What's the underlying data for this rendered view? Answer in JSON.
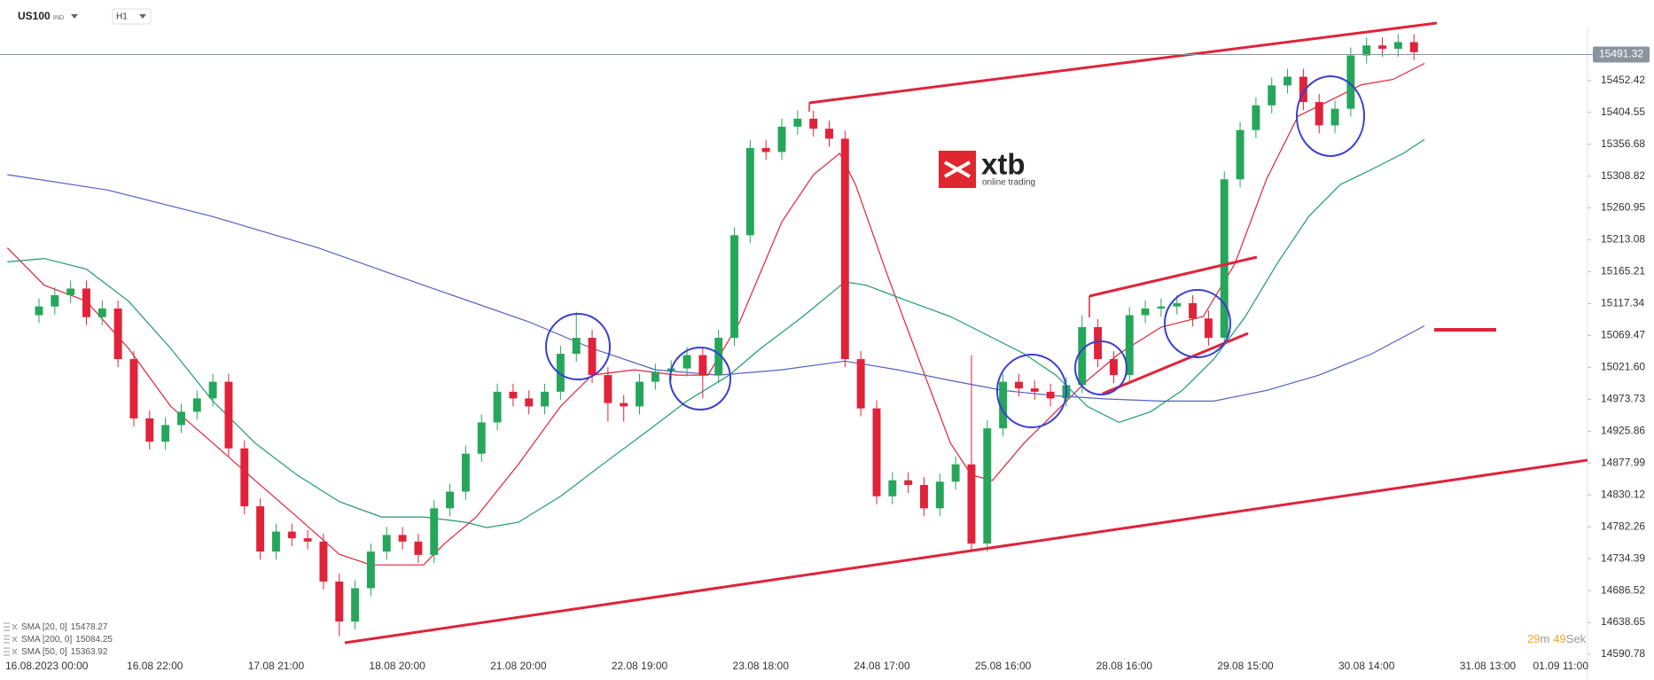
{
  "header": {
    "symbol": "US100",
    "market": "IND",
    "timeframe": "H1"
  },
  "logo": {
    "brand": "xtb",
    "tagline": "online trading"
  },
  "timer": {
    "minutes": "29",
    "minutes_unit": "m",
    "seconds": "49",
    "seconds_unit": "Sek"
  },
  "chart_data": {
    "type": "candlestick",
    "up_color": "#26a65b",
    "down_color": "#e0233a",
    "xlim": [
      -7.4,
      300
    ],
    "ylim": [
      14590.78,
      15525.3
    ],
    "xticks": [
      {
        "value": 0,
        "label": "16.08.2023 00:00"
      },
      {
        "value": 22,
        "label": "16.08 22:00"
      },
      {
        "value": 45,
        "label": "17.08 21:00"
      },
      {
        "value": 68,
        "label": "18.08 20:00"
      },
      {
        "value": 91,
        "label": "21.08 20:00"
      },
      {
        "value": 114,
        "label": "22.08 19:00"
      },
      {
        "value": 137,
        "label": "23.08 18:00"
      },
      {
        "value": 160,
        "label": "24.08 17:00"
      },
      {
        "value": 183,
        "label": "25.08 16:00"
      },
      {
        "value": 206,
        "label": "28.08 16:00"
      },
      {
        "value": 229,
        "label": "29.08 15:00"
      },
      {
        "value": 252,
        "label": "30.08 14:00"
      },
      {
        "value": 275,
        "label": "31.08 13:00"
      },
      {
        "value": 298,
        "label": "01.09 11:00"
      }
    ],
    "yticks": [
      14590.78,
      14638.65,
      14686.52,
      14734.39,
      14782.26,
      14830.12,
      14877.99,
      14925.86,
      14973.73,
      {
        "value": 15021.6,
        "label": "15021.60"
      },
      15069.47,
      15117.34,
      15165.21,
      15213.08,
      15260.95,
      15308.82,
      15356.68,
      15404.55,
      15452.42
    ],
    "current_price": 15491.32,
    "x": [
      0,
      3,
      6,
      9,
      12,
      15,
      18,
      21,
      24,
      27,
      30,
      33,
      36,
      39,
      42,
      45,
      48,
      51,
      54,
      57,
      60,
      63,
      66,
      69,
      72,
      75,
      78,
      81,
      84,
      87,
      90,
      93,
      96,
      99,
      102,
      105,
      108,
      111,
      114,
      117,
      120,
      123,
      126,
      129,
      132,
      135,
      138,
      141,
      144,
      147,
      150,
      153,
      156,
      159,
      162,
      165,
      168,
      171,
      174,
      177,
      180,
      183,
      186,
      189,
      192,
      195,
      198,
      201,
      204,
      207,
      210,
      213,
      216,
      219,
      222,
      225,
      228,
      231,
      234,
      237,
      240,
      243,
      246,
      249,
      252,
      255,
      258,
      261
    ],
    "open": [
      15100,
      15113,
      15130,
      15140,
      15097,
      15110,
      15034,
      14945,
      14910,
      14935,
      14955,
      14975,
      15000,
      14900,
      14813,
      14745,
      14775,
      14765,
      14760,
      14700,
      14640,
      14690,
      14745,
      14770,
      14760,
      14740,
      14810,
      14835,
      14892,
      14939,
      14985,
      14975,
      14963,
      14985,
      15042,
      15066,
      15010,
      14968,
      14963,
      15000,
      15015,
      15020,
      15040,
      15010,
      15066,
      15220,
      15351,
      15345,
      15383,
      15395,
      15380,
      15365,
      15034,
      14960,
      14828,
      14852,
      14845,
      14810,
      14850,
      14876,
      14757,
      14930,
      15000,
      14990,
      14985,
      14975,
      14995,
      15082,
      15034,
      15010,
      15100,
      15110,
      15113,
      15118,
      15095,
      15066,
      15304,
      15378,
      15415,
      15445,
      15458,
      15420,
      15385,
      15410,
      15490,
      15505,
      15500,
      15510
    ],
    "high": [
      15125,
      15142,
      15152,
      15152,
      15122,
      15122,
      15046,
      14957,
      14947,
      14967,
      14987,
      15012,
      15012,
      14912,
      14825,
      14787,
      14787,
      14777,
      14772,
      14712,
      14702,
      14757,
      14782,
      14782,
      14772,
      14822,
      14847,
      14904,
      14951,
      14997,
      14997,
      14987,
      14997,
      15054,
      15105,
      15078,
      15022,
      14980,
      15012,
      15027,
      15032,
      15052,
      15052,
      15078,
      15232,
      15363,
      15363,
      15395,
      15407,
      15407,
      15392,
      15377,
      15046,
      14972,
      14864,
      14864,
      14857,
      14862,
      14888,
      15040,
      14942,
      15012,
      15012,
      15002,
      14997,
      15007,
      15100,
      15094,
      15046,
      15112,
      15122,
      15125,
      15130,
      15130,
      15107,
      15316,
      15390,
      15427,
      15457,
      15470,
      15470,
      15432,
      15422,
      15502,
      15517,
      15517,
      15522,
      15522
    ],
    "low": [
      15088,
      15101,
      15118,
      15085,
      15085,
      15022,
      14933,
      14898,
      14898,
      14923,
      14943,
      14963,
      14888,
      14801,
      14733,
      14733,
      14753,
      14748,
      14688,
      14618,
      14628,
      14678,
      14733,
      14748,
      14728,
      14728,
      14798,
      14823,
      14880,
      14927,
      14963,
      14951,
      14951,
      14973,
      15030,
      14998,
      14940,
      14940,
      14951,
      14988,
      15003,
      15008,
      14975,
      14998,
      15054,
      15208,
      15333,
      15333,
      15371,
      15368,
      15353,
      15022,
      14948,
      14816,
      14816,
      14833,
      14798,
      14798,
      14838,
      14745,
      14745,
      14918,
      14978,
      14973,
      14963,
      14963,
      14983,
      15022,
      14998,
      14998,
      15088,
      15098,
      15101,
      15083,
      15054,
      15054,
      15292,
      15366,
      15403,
      15433,
      15408,
      15373,
      15373,
      15398,
      15478,
      15488,
      15488,
      15483
    ],
    "close": [
      15113,
      15130,
      15140,
      15097,
      15110,
      15034,
      14945,
      14910,
      14935,
      14955,
      14975,
      15000,
      14900,
      14813,
      14745,
      14775,
      14765,
      14760,
      14700,
      14640,
      14690,
      14745,
      14770,
      14760,
      14740,
      14810,
      14835,
      14892,
      14939,
      14985,
      14975,
      14963,
      14985,
      15042,
      15066,
      15010,
      14968,
      14963,
      15000,
      15015,
      15020,
      15040,
      15010,
      15066,
      15220,
      15351,
      15345,
      15383,
      15395,
      15380,
      15365,
      15034,
      14960,
      14828,
      14852,
      14845,
      14810,
      14850,
      14876,
      14757,
      14930,
      15000,
      14990,
      14985,
      14975,
      14995,
      15082,
      15034,
      15010,
      15100,
      15110,
      15113,
      15118,
      15095,
      15066,
      15304,
      15378,
      15415,
      15445,
      15458,
      15420,
      15385,
      15410,
      15490,
      15505,
      15500,
      15510,
      15495
    ],
    "overlays": [
      {
        "name": "SMA [20, 0]",
        "last_value": 15478.27,
        "color": "#e0233a",
        "x": [
          -6,
          1,
          9,
          17,
          25,
          33,
          41,
          49,
          57,
          63,
          73,
          77,
          83,
          91,
          99,
          105,
          113,
          121,
          127,
          133,
          141,
          147,
          152,
          155,
          161,
          167,
          173,
          177,
          181,
          187,
          193,
          199,
          205,
          213,
          221,
          227,
          233,
          239,
          245,
          251,
          257,
          263
        ],
        "values": [
          15201,
          15145,
          15121,
          15050,
          14963,
          14908,
          14852,
          14797,
          14741,
          14725,
          14725,
          14757,
          14797,
          14876,
          14963,
          15010,
          15018,
          15010,
          15010,
          15090,
          15240,
          15311,
          15343,
          15296,
          15161,
          15034,
          14908,
          14860,
          14852,
          14908,
          14955,
          15002,
          15042,
          15082,
          15098,
          15177,
          15304,
          15399,
          15422,
          15446,
          15454,
          15478
        ]
      },
      {
        "name": "SMA [200, 0]",
        "last_value": 15084.25,
        "color": "#5561c4",
        "x": [
          -6,
          13,
          33,
          53,
          73,
          93,
          105,
          117,
          129,
          141,
          153,
          163,
          173,
          183,
          193,
          203,
          213,
          223,
          233,
          243,
          253,
          263
        ],
        "values": [
          15311,
          15288,
          15248,
          15201,
          15145,
          15090,
          15050,
          15018,
          15010,
          15018,
          15031,
          15018,
          15002,
          14987,
          14979,
          14974,
          14971,
          14971,
          14987,
          15010,
          15042,
          15084
        ]
      },
      {
        "name": "SMA [50, 0]",
        "last_value": 15363.92,
        "color": "#1f9a6a",
        "x": [
          -6,
          1,
          9,
          17,
          25,
          33,
          41,
          49,
          57,
          65,
          73,
          81,
          85,
          91,
          99,
          107,
          115,
          123,
          131,
          137,
          145,
          151,
          153,
          157,
          165,
          173,
          181,
          187,
          193,
          199,
          205,
          211,
          217,
          223,
          229,
          235,
          241,
          247,
          253,
          259,
          263
        ],
        "values": [
          15180,
          15185,
          15169,
          15121,
          15050,
          14971,
          14908,
          14860,
          14820,
          14797,
          14797,
          14789,
          14781,
          14789,
          14828,
          14876,
          14923,
          14971,
          15010,
          15050,
          15098,
          15137,
          15150,
          15145,
          15121,
          15098,
          15066,
          15042,
          15010,
          14963,
          14939,
          14955,
          14987,
          15034,
          15098,
          15177,
          15248,
          15296,
          15319,
          15343,
          15364
        ]
      }
    ]
  }
}
